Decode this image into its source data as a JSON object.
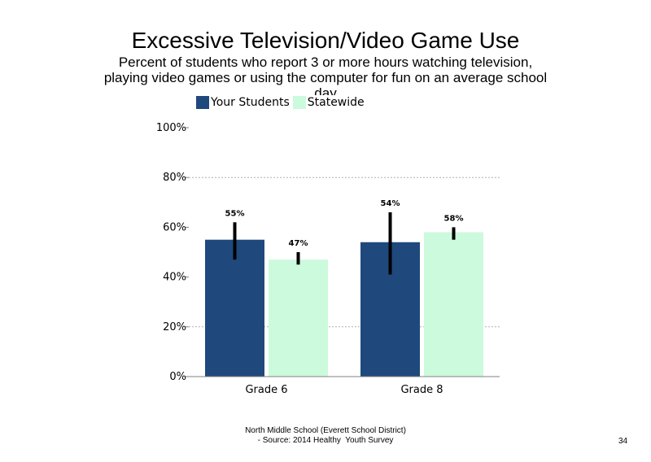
{
  "slide": {
    "footer_line1": "North Middle School (Everett School District)",
    "footer_line2": "- Source: 2014 Healthy  Youth Survey",
    "page_number": "34"
  },
  "chart_data": {
    "type": "bar",
    "title": "Excessive Television/Video Game Use",
    "subtitle": "Percent of students who report 3 or more hours watching television, playing video games or using the computer for fun on an average school day",
    "categories": [
      "Grade 6",
      "Grade 8"
    ],
    "series": [
      {
        "name": "Your Students",
        "color": "#1f497d",
        "values": [
          55,
          54
        ],
        "labels": [
          "55%",
          "54%"
        ],
        "error_low": [
          47,
          41
        ],
        "error_high": [
          62,
          66
        ]
      },
      {
        "name": "Statewide",
        "color": "#ccfadc",
        "values": [
          47,
          58
        ],
        "labels": [
          "47%",
          "58%"
        ],
        "error_low": [
          45,
          55
        ],
        "error_high": [
          50,
          60
        ]
      }
    ],
    "ylim": [
      0,
      100
    ],
    "yticks": [
      0,
      20,
      40,
      60,
      80,
      100
    ],
    "ytick_labels": [
      "0%",
      "20%",
      "40%",
      "60%",
      "80%",
      "100%"
    ],
    "xlabel": "",
    "ylabel": "",
    "grid": "dotted horizontal at 20, 80",
    "legend_position": "top-left"
  }
}
